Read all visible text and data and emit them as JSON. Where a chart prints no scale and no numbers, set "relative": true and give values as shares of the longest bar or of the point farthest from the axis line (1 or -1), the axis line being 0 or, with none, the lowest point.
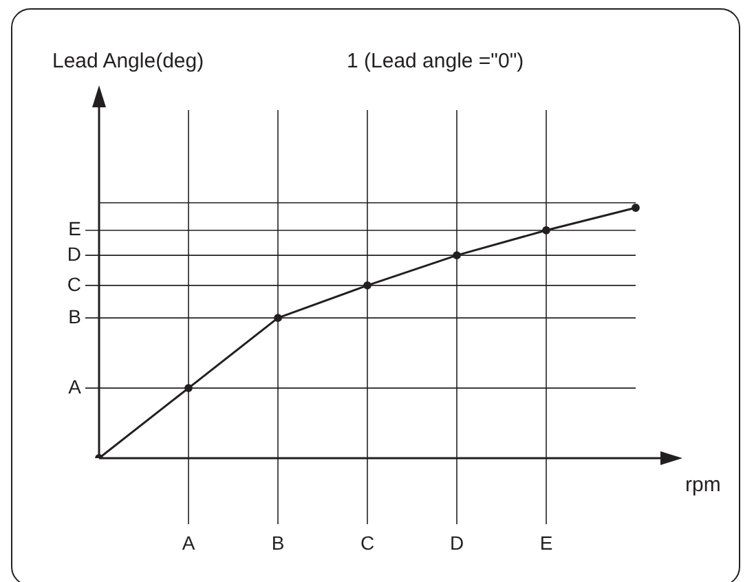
{
  "chart_data": {
    "type": "line",
    "title": "1 (Lead angle =\"0\")",
    "annotations": [
      "Lead Angle(deg)"
    ],
    "xlabel": "rpm",
    "categories": [
      null,
      "A",
      "B",
      "C",
      "D",
      "E",
      null
    ],
    "relative": true,
    "series": [
      {
        "color": "#231f20",
        "values": [
          0,
          0.28,
          0.56,
          0.69,
          0.81,
          0.91,
          1
        ]
      }
    ],
    "ref_lines": [
      {
        "axis": "y",
        "value": 0.28,
        "label": "A"
      },
      {
        "axis": "y",
        "value": 0.56,
        "label": "B"
      },
      {
        "axis": "y",
        "value": 0.69,
        "label": "C"
      },
      {
        "axis": "y",
        "value": 0.81,
        "label": "D"
      },
      {
        "axis": "y",
        "value": 0.91,
        "label": "E"
      },
      {
        "axis": "y",
        "value": 1.02
      }
    ],
    "grid": "x",
    "legend": false,
    "marker": "circle",
    "line_style": "solid"
  }
}
